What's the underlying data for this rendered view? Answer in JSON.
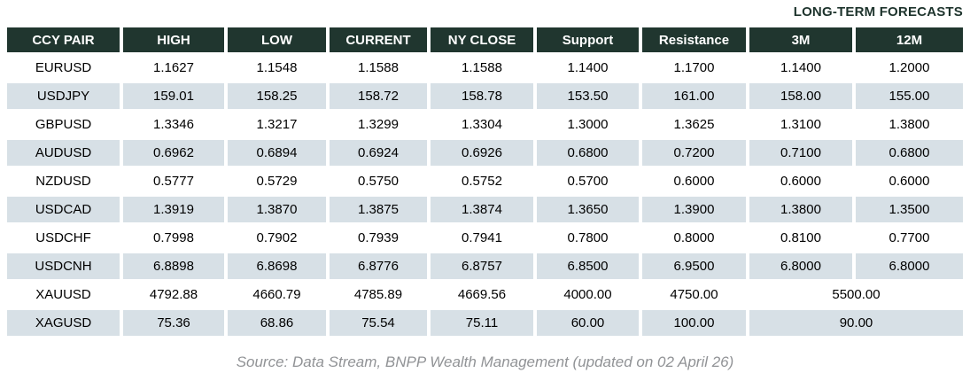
{
  "title": "LONG-TERM FORECASTS",
  "footer": "Source: Data Stream, BNPP Wealth Management (updated on 02 April 26)",
  "colors": {
    "header_bg": "#20362f",
    "row_alt_bg": "#d7e0e6",
    "title_color": "#1d332c",
    "footer_color": "#919396"
  },
  "chart_data": {
    "type": "table",
    "title": "LONG-TERM FORECASTS",
    "headers": [
      "CCY PAIR",
      "HIGH",
      "LOW",
      "CURRENT",
      "NY CLOSE",
      "Support",
      "Resistance",
      "3M",
      "12M"
    ],
    "rows": [
      {
        "pair": "EURUSD",
        "values": [
          "1.1627",
          "1.1548",
          "1.1588",
          "1.1588",
          "1.1400",
          "1.1700",
          "1.1400",
          "1.2000"
        ]
      },
      {
        "pair": "USDJPY",
        "values": [
          "159.01",
          "158.25",
          "158.72",
          "158.78",
          "153.50",
          "161.00",
          "158.00",
          "155.00"
        ]
      },
      {
        "pair": "GBPUSD",
        "values": [
          "1.3346",
          "1.3217",
          "1.3299",
          "1.3304",
          "1.3000",
          "1.3625",
          "1.3100",
          "1.3800"
        ]
      },
      {
        "pair": "AUDUSD",
        "values": [
          "0.6962",
          "0.6894",
          "0.6924",
          "0.6926",
          "0.6800",
          "0.7200",
          "0.7100",
          "0.6800"
        ]
      },
      {
        "pair": "NZDUSD",
        "values": [
          "0.5777",
          "0.5729",
          "0.5750",
          "0.5752",
          "0.5700",
          "0.6000",
          "0.6000",
          "0.6000"
        ]
      },
      {
        "pair": "USDCAD",
        "values": [
          "1.3919",
          "1.3870",
          "1.3875",
          "1.3874",
          "1.3650",
          "1.3900",
          "1.3800",
          "1.3500"
        ]
      },
      {
        "pair": "USDCHF",
        "values": [
          "0.7998",
          "0.7902",
          "0.7939",
          "0.7941",
          "0.7800",
          "0.8000",
          "0.8100",
          "0.7700"
        ]
      },
      {
        "pair": "USDCNH",
        "values": [
          "6.8898",
          "6.8698",
          "6.8776",
          "6.8757",
          "6.8500",
          "6.9500",
          "6.8000",
          "6.8000"
        ]
      },
      {
        "pair": "XAUUSD",
        "values": [
          "4792.88",
          "4660.79",
          "4785.89",
          "4669.56",
          "4000.00",
          "4750.00"
        ],
        "forecast_merged": "5500.00"
      },
      {
        "pair": "XAGUSD",
        "values": [
          "75.36",
          "68.86",
          "75.54",
          "75.11",
          "60.00",
          "100.00"
        ],
        "forecast_merged": "90.00"
      }
    ]
  }
}
